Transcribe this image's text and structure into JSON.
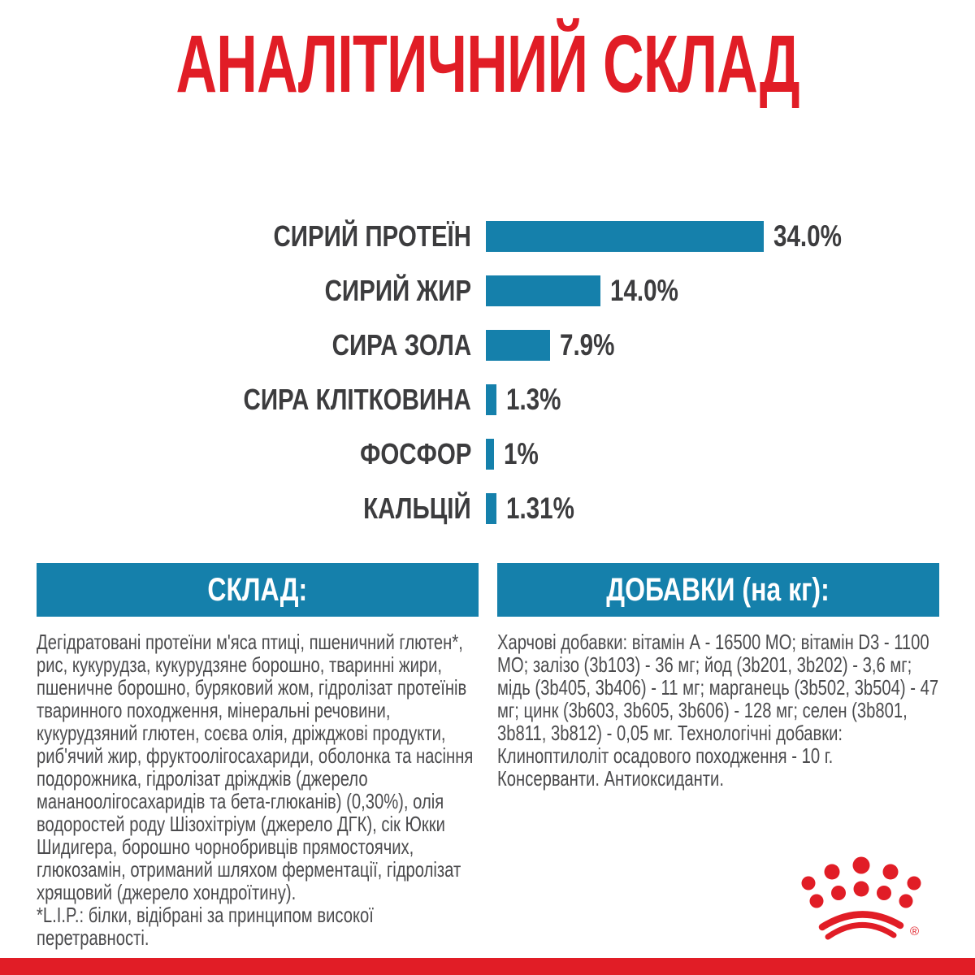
{
  "title": "АНАЛІТИЧНИЙ СКЛАД",
  "chart_data": {
    "type": "bar",
    "orientation": "horizontal",
    "categories": [
      "СИРИЙ ПРОТЕЇН",
      "СИРИЙ ЖИР",
      "СИРА ЗОЛА",
      "СИРА КЛІТКОВИНА",
      "ФОСФОР",
      "КАЛЬЦІЙ"
    ],
    "values": [
      34.0,
      14.0,
      7.9,
      1.3,
      1.0,
      1.31
    ],
    "value_labels": [
      "34.0%",
      "14.0%",
      "7.9%",
      "1.3%",
      "1%",
      "1.31%"
    ],
    "unit": "%",
    "xlim": [
      0,
      34
    ],
    "grid": false,
    "legend": false,
    "bar_color": "#1580AB",
    "title": "АНАЛІТИЧНИЙ СКЛАД"
  },
  "sections": {
    "composition": {
      "header": "СКЛАД:",
      "body": "Дегідратовані протеїни м'яса птиці, пшеничний глютен*, рис, кукурудза, кукурудзяне борошно, тваринні жири, пшеничне борошно, буряковий жом, гідролізат протеїнів тваринного походження, мінеральні речовини, кукурудзяний глютен, соєва олія, дріжджові продукти, риб'ячий жир, фруктоолігосахариди, оболонка та насіння подорожника, гідролізат дріжджів (джерело мананоолігосахаридів та бета-глюканів) (0,30%), олія водоростей роду Шізохітріум (джерело ДГК), сік Юкки Шидигера, борошно чорнобривців прямостоячих, глюкозамін, отриманий шляхом ферментації, гідролізат хрящовий (джерело хондроїтину).",
      "footnote": "*L.I.P.: білки, відібрані за принципом високої перетравності."
    },
    "additives": {
      "header": "ДОБАВКИ (на кг):",
      "body": "Харчові добавки: вітамін А - 16500 МО; вітамін D3 - 1100 МО; залізо (3b103) - 36 мг; йод (3b201, 3b202) - 3,6 мг; мідь (3b405, 3b406) - 11 мг; марганець (3b502, 3b504) - 47 мг; цинк (3b603, 3b605, 3b606) - 128 мг; селен (3b801, 3b811, 3b812) - 0,05 мг. Технологічні добавки: Клиноптилоліт осадового походження - 10 г. Консерванти. Антиоксиданти."
    }
  },
  "branding": {
    "logo": "royal-canin-crown",
    "registered_mark": "®"
  },
  "colors": {
    "brand_red": "#E11D26",
    "bar_blue": "#1580AB",
    "heading_text": "#3C3C3E",
    "body_text": "#4B4B4D"
  }
}
